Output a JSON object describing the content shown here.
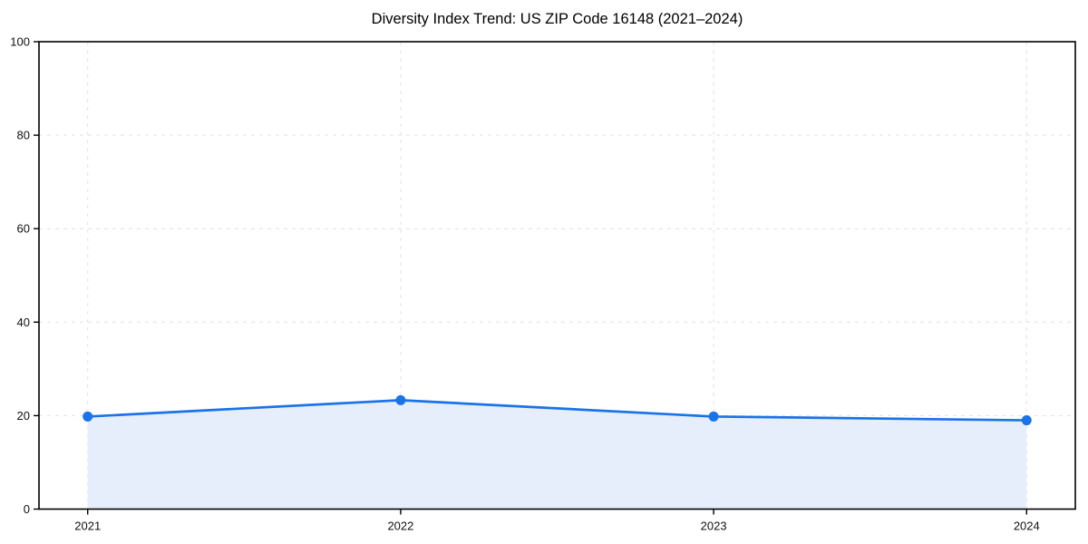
{
  "chart_data": {
    "type": "area",
    "title": "Diversity Index Trend: US ZIP Code 16148 (2021–2024)",
    "xlabel": "",
    "ylabel": "",
    "x": [
      "2021",
      "2022",
      "2023",
      "2024"
    ],
    "series": [
      {
        "name": "Diversity Index",
        "values": [
          19.8,
          23.3,
          19.8,
          19.0
        ]
      }
    ],
    "ylim": [
      0,
      100
    ],
    "yticks": [
      0,
      20,
      40,
      60,
      80,
      100
    ],
    "grid": "on",
    "grid_style": "dashed",
    "legend_position": "none",
    "marker": "circle",
    "colors": {
      "line": "#1a73e8",
      "marker": "#1a73e8",
      "area_fill": "#e6eefc",
      "grid": "#e2e2e2",
      "axis": "#000000",
      "tick_label": "#111111",
      "background": "#ffffff"
    }
  }
}
